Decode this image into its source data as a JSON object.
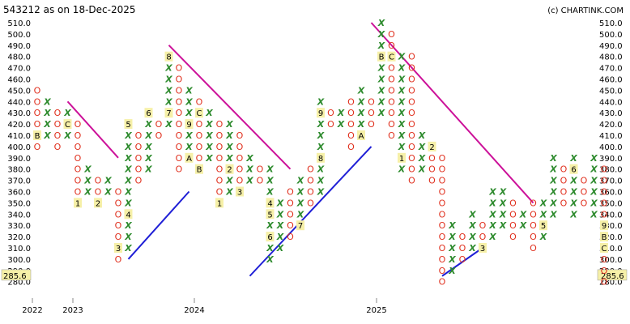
{
  "header": {
    "title": "543212 as on 18-Dec-2025",
    "credit": "(c) CHARTINK.COM"
  },
  "colors": {
    "x_mark": "#2e8b2e",
    "o_mark": "#e0301e",
    "month_bg": "#f6f0a8",
    "bearish_line": "#cc1199",
    "bullish_line": "#1f1fd6",
    "last_price_bg": "#f6f0a8",
    "gridline": "#dddddd"
  },
  "chart_data": {
    "type": "point-and-figure",
    "ylim": [
      280,
      510
    ],
    "box_size": 10,
    "y_ticks": [
      "280.0",
      "290.0",
      "300.0",
      "310.0",
      "320.0",
      "330.0",
      "340.0",
      "350.0",
      "360.0",
      "370.0",
      "380.0",
      "390.0",
      "400.0",
      "410.0",
      "420.0",
      "430.0",
      "440.0",
      "450.0",
      "460.0",
      "470.0",
      "480.0",
      "490.0",
      "500.0",
      "510.0"
    ],
    "last_price": "285.6",
    "last_price_value": 285.6,
    "x_ticks": [
      {
        "label": "2022",
        "col": 0
      },
      {
        "label": "2023",
        "col": 4
      },
      {
        "label": "2024",
        "col": 16
      },
      {
        "label": "2025",
        "col": 34
      }
    ],
    "columns": [
      {
        "type": "O",
        "low": 400,
        "high": 450,
        "marks": {
          "410": "B"
        }
      },
      {
        "type": "X",
        "low": 410,
        "high": 440
      },
      {
        "type": "O",
        "low": 400,
        "high": 430
      },
      {
        "type": "X",
        "low": 410,
        "high": 430,
        "marks": {
          "420": "C"
        }
      },
      {
        "type": "O",
        "low": 350,
        "high": 420,
        "marks": {
          "350": "1"
        }
      },
      {
        "type": "X",
        "low": 360,
        "high": 380
      },
      {
        "type": "O",
        "low": 350,
        "high": 370,
        "marks": {
          "350": "2"
        }
      },
      {
        "type": "X",
        "low": 360,
        "high": 370
      },
      {
        "type": "O",
        "low": 300,
        "high": 360,
        "marks": {
          "310": "3"
        }
      },
      {
        "type": "X",
        "low": 310,
        "high": 420,
        "marks": {
          "340": "4",
          "420": "5"
        }
      },
      {
        "type": "O",
        "low": 370,
        "high": 410
      },
      {
        "type": "X",
        "low": 380,
        "high": 430,
        "marks": {
          "430": "6"
        }
      },
      {
        "type": "O",
        "low": 410,
        "high": 420
      },
      {
        "type": "X",
        "low": 420,
        "high": 480,
        "marks": {
          "430": "7",
          "480": "8"
        }
      },
      {
        "type": "O",
        "low": 380,
        "high": 470
      },
      {
        "type": "X",
        "low": 390,
        "high": 450,
        "marks": {
          "390": "A",
          "420": "9"
        }
      },
      {
        "type": "O",
        "low": 380,
        "high": 440,
        "marks": {
          "380": "B",
          "430": "C"
        }
      },
      {
        "type": "X",
        "low": 390,
        "high": 430
      },
      {
        "type": "O",
        "low": 350,
        "high": 420,
        "marks": {
          "350": "1"
        }
      },
      {
        "type": "X",
        "low": 360,
        "high": 420,
        "marks": {
          "380": "2"
        }
      },
      {
        "type": "O",
        "low": 360,
        "high": 410,
        "marks": {
          "360": "3"
        }
      },
      {
        "type": "X",
        "low": 370,
        "high": 390
      },
      {
        "type": "O",
        "low": 370,
        "high": 380
      },
      {
        "type": "X",
        "low": 300,
        "high": 380,
        "marks": {
          "320": "6",
          "340": "5",
          "350": "4"
        }
      },
      {
        "type": "X",
        "low": 310,
        "high": 350
      },
      {
        "type": "O",
        "low": 320,
        "high": 360
      },
      {
        "type": "X",
        "low": 330,
        "high": 370,
        "marks": {
          "330": "7"
        }
      },
      {
        "type": "O",
        "low": 350,
        "high": 380
      },
      {
        "type": "X",
        "low": 360,
        "high": 440,
        "marks": {
          "390": "8",
          "430": "9"
        }
      },
      {
        "type": "O",
        "low": 420,
        "high": 430
      },
      {
        "type": "X",
        "low": 420,
        "high": 430
      },
      {
        "type": "O",
        "low": 400,
        "high": 440
      },
      {
        "type": "X",
        "low": 410,
        "high": 450,
        "marks": {
          "410": "A"
        }
      },
      {
        "type": "O",
        "low": 420,
        "high": 440
      },
      {
        "type": "X",
        "low": 430,
        "high": 510,
        "marks": {
          "480": "B"
        }
      },
      {
        "type": "O",
        "low": 410,
        "high": 500,
        "marks": {
          "480": "C"
        }
      },
      {
        "type": "X",
        "low": 380,
        "high": 480,
        "marks": {
          "390": "1"
        }
      },
      {
        "type": "O",
        "low": 370,
        "high": 480
      },
      {
        "type": "X",
        "low": 380,
        "high": 410
      },
      {
        "type": "O",
        "low": 370,
        "high": 400,
        "marks": {
          "400": "2"
        }
      },
      {
        "type": "O",
        "low": 280,
        "high": 390
      },
      {
        "type": "X",
        "low": 290,
        "high": 330
      },
      {
        "type": "O",
        "low": 300,
        "high": 320
      },
      {
        "type": "X",
        "low": 310,
        "high": 340
      },
      {
        "type": "O",
        "low": 310,
        "high": 330,
        "marks": {
          "310": "3"
        }
      },
      {
        "type": "X",
        "low": 320,
        "high": 360
      },
      {
        "type": "X",
        "low": 330,
        "high": 360
      },
      {
        "type": "O",
        "low": 320,
        "high": 350
      },
      {
        "type": "X",
        "low": 330,
        "high": 340,
        "marks": {
          "320": "4"
        }
      },
      {
        "type": "O",
        "low": 310,
        "high": 350
      },
      {
        "type": "X",
        "low": 320,
        "high": 350,
        "marks": {
          "330": "5"
        }
      },
      {
        "type": "X",
        "low": 340,
        "high": 390
      },
      {
        "type": "O",
        "low": 350,
        "high": 380
      },
      {
        "type": "X",
        "low": 340,
        "high": 390,
        "marks": {
          "380": "6"
        }
      },
      {
        "type": "O",
        "low": 350,
        "high": 370,
        "marks": {
          "330": "7"
        }
      },
      {
        "type": "X",
        "low": 340,
        "high": 390,
        "marks": {
          "320": "8"
        }
      },
      {
        "type": "O",
        "low": 280,
        "high": 380,
        "marks": {
          "330": "9",
          "310": "C",
          "320": "B"
        }
      }
    ],
    "trendlines": [
      {
        "kind": "bearish",
        "from": {
          "col": 3,
          "value": 440
        },
        "to": {
          "col": 8,
          "value": 390
        }
      },
      {
        "kind": "bullish",
        "from": {
          "col": 9,
          "value": 300
        },
        "to": {
          "col": 15,
          "value": 360
        }
      },
      {
        "kind": "bearish",
        "from": {
          "col": 13,
          "value": 490
        },
        "to": {
          "col": 25,
          "value": 380
        }
      },
      {
        "kind": "bullish",
        "from": {
          "col": 21,
          "value": 285
        },
        "to": {
          "col": 33,
          "value": 400
        }
      },
      {
        "kind": "bearish",
        "from": {
          "col": 33,
          "value": 510
        },
        "to": {
          "col": 49,
          "value": 350
        }
      },
      {
        "kind": "bullish",
        "from": {
          "col": 40,
          "value": 285
        },
        "to": {
          "col": 44,
          "value": 310
        }
      }
    ]
  }
}
